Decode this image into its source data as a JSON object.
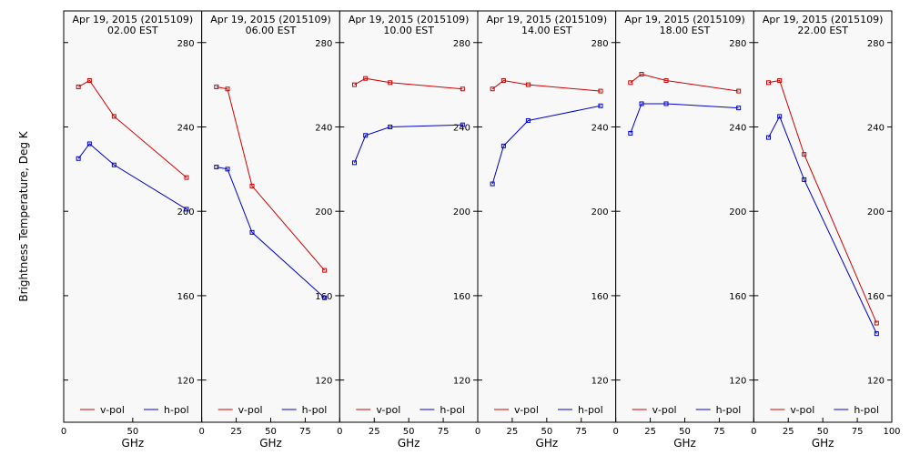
{
  "figure": {
    "ylabel": "Brightness Temperature, Deg K",
    "xlabel": "GHz",
    "background": "#f8f8f8",
    "colors": {
      "v-pol": "#d00000",
      "h-pol": "#0000cc"
    }
  },
  "chart_data": [
    {
      "type": "line",
      "title": [
        "Apr 19, 2015 (2015109)",
        "02.00 EST"
      ],
      "xlabel": "GHz",
      "ylabel": "Brightness Temperature, Deg K",
      "xlim": [
        0,
        100
      ],
      "ylim": [
        100,
        295
      ],
      "xticks": [
        "0",
        "50"
      ],
      "yticks": [
        "280",
        "240",
        "200",
        "160",
        "120"
      ],
      "legend": "bottom",
      "series": [
        {
          "name": "v-pol",
          "x": [
            10.65,
            18.7,
            36.5,
            89
          ],
          "y": [
            259,
            262,
            245,
            216
          ]
        },
        {
          "name": "h-pol",
          "x": [
            10.65,
            18.7,
            36.5,
            89
          ],
          "y": [
            225,
            232,
            222,
            201
          ]
        }
      ]
    },
    {
      "type": "line",
      "title": [
        "Apr 19, 2015 (2015109)",
        "06.00 EST"
      ],
      "xlabel": "GHz",
      "xlim": [
        0,
        100
      ],
      "ylim": [
        100,
        295
      ],
      "xticks": [
        "0",
        "25",
        "50",
        "75"
      ],
      "yticks": [
        "280",
        "240",
        "200",
        "160",
        "120"
      ],
      "legend": "bottom",
      "series": [
        {
          "name": "v-pol",
          "x": [
            10.65,
            18.7,
            36.5,
            89
          ],
          "y": [
            259,
            258,
            212,
            172
          ]
        },
        {
          "name": "h-pol",
          "x": [
            10.65,
            18.7,
            36.5,
            89
          ],
          "y": [
            221,
            220,
            190,
            159
          ]
        }
      ]
    },
    {
      "type": "line",
      "title": [
        "Apr 19, 2015 (2015109)",
        "10.00 EST"
      ],
      "xlabel": "GHz",
      "xlim": [
        0,
        100
      ],
      "ylim": [
        100,
        295
      ],
      "xticks": [
        "0",
        "25",
        "50",
        "75"
      ],
      "yticks": [
        "280",
        "240",
        "200",
        "160",
        "120"
      ],
      "legend": "bottom",
      "series": [
        {
          "name": "v-pol",
          "x": [
            10.65,
            18.7,
            36.5,
            89
          ],
          "y": [
            260,
            263,
            261,
            258
          ]
        },
        {
          "name": "h-pol",
          "x": [
            10.65,
            18.7,
            36.5,
            89
          ],
          "y": [
            223,
            236,
            240,
            241
          ]
        }
      ]
    },
    {
      "type": "line",
      "title": [
        "Apr 19, 2015 (2015109)",
        "14.00 EST"
      ],
      "xlabel": "GHz",
      "xlim": [
        0,
        100
      ],
      "ylim": [
        100,
        295
      ],
      "xticks": [
        "0",
        "25",
        "50",
        "75"
      ],
      "yticks": [
        "280",
        "240",
        "200",
        "160",
        "120"
      ],
      "legend": "bottom",
      "series": [
        {
          "name": "v-pol",
          "x": [
            10.65,
            18.7,
            36.5,
            89
          ],
          "y": [
            258,
            262,
            260,
            257
          ]
        },
        {
          "name": "h-pol",
          "x": [
            10.65,
            18.7,
            36.5,
            89
          ],
          "y": [
            213,
            231,
            243,
            250
          ]
        }
      ]
    },
    {
      "type": "line",
      "title": [
        "Apr 19, 2015 (2015109)",
        "18.00 EST"
      ],
      "xlabel": "GHz",
      "xlim": [
        0,
        100
      ],
      "ylim": [
        100,
        295
      ],
      "xticks": [
        "0",
        "25",
        "50",
        "75"
      ],
      "yticks": [
        "280",
        "240",
        "200",
        "160",
        "120"
      ],
      "legend": "bottom",
      "series": [
        {
          "name": "v-pol",
          "x": [
            10.65,
            18.7,
            36.5,
            89
          ],
          "y": [
            261,
            265,
            262,
            257
          ]
        },
        {
          "name": "h-pol",
          "x": [
            10.65,
            18.7,
            36.5,
            89
          ],
          "y": [
            237,
            251,
            251,
            249
          ]
        }
      ]
    },
    {
      "type": "line",
      "title": [
        "Apr 19, 2015 (2015109)",
        "22.00 EST"
      ],
      "xlabel": "GHz",
      "xlim": [
        0,
        100
      ],
      "ylim": [
        100,
        295
      ],
      "xticks": [
        "0",
        "25",
        "50",
        "75",
        "100"
      ],
      "yticks": [
        "280",
        "240",
        "200",
        "160",
        "120"
      ],
      "legend": "bottom",
      "series": [
        {
          "name": "v-pol",
          "x": [
            10.65,
            18.7,
            36.5,
            89
          ],
          "y": [
            261,
            262,
            227,
            147
          ]
        },
        {
          "name": "h-pol",
          "x": [
            10.65,
            18.7,
            36.5,
            89
          ],
          "y": [
            235,
            245,
            215,
            142
          ]
        }
      ]
    }
  ]
}
